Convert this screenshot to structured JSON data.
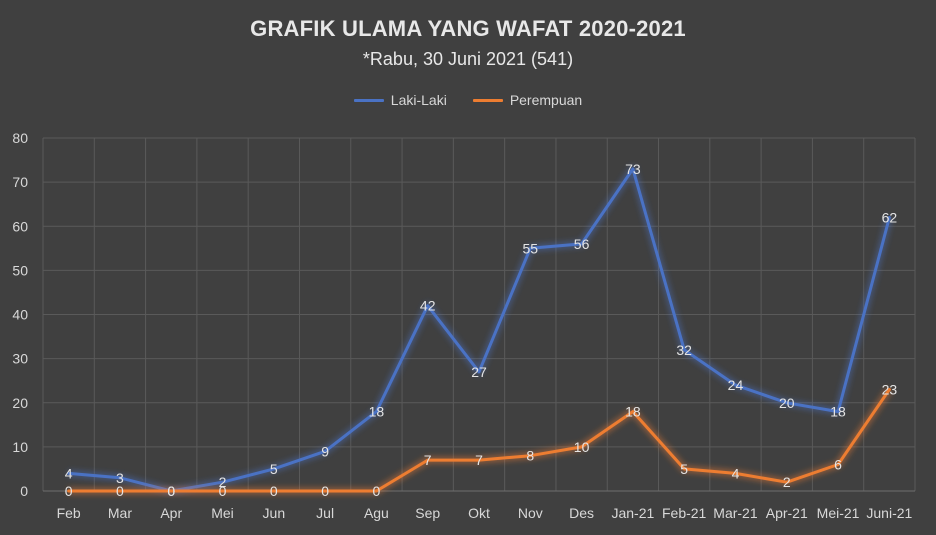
{
  "chart_data": {
    "type": "line",
    "title": "GRAFIK ULAMA YANG WAFAT 2020-2021",
    "subtitle": "*Rabu, 30 Juni 2021 (541)",
    "categories": [
      "Feb",
      "Mar",
      "Apr",
      "Mei",
      "Jun",
      "Jul",
      "Agu",
      "Sep",
      "Okt",
      "Nov",
      "Des",
      "Jan-21",
      "Feb-21",
      "Mar-21",
      "Apr-21",
      "Mei-21",
      "Juni-21"
    ],
    "series": [
      {
        "name": "Laki-Laki",
        "color": "#4a72c4",
        "values": [
          4,
          3,
          0,
          2,
          5,
          9,
          18,
          42,
          27,
          55,
          56,
          73,
          32,
          24,
          20,
          18,
          62
        ]
      },
      {
        "name": "Perempuan",
        "color": "#ed7d31",
        "values": [
          0,
          0,
          0,
          0,
          0,
          0,
          0,
          7,
          7,
          8,
          10,
          18,
          5,
          4,
          2,
          6,
          23
        ]
      }
    ],
    "xlabel": "",
    "ylabel": "",
    "ylim": [
      0,
      80
    ],
    "yticks": [
      0,
      10,
      20,
      30,
      40,
      50,
      60,
      70,
      80
    ],
    "grid": true,
    "legend": "top-center",
    "data_labels": true
  }
}
